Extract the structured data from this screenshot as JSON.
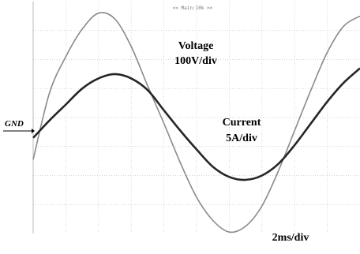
{
  "screen": {
    "top_label": "<< Main:10k >>",
    "gnd_label": "GND"
  },
  "chart_data": {
    "type": "line",
    "title": "",
    "xlabel": "",
    "ylabel": "",
    "grid": true,
    "x_divisions": 10,
    "y_divisions": 8,
    "x": [
      0,
      0.5,
      1.0,
      1.5,
      2.0,
      2.5,
      3.0,
      3.5,
      4.0,
      4.5,
      5.0,
      5.5,
      6.0,
      6.5,
      7.0,
      7.5,
      8.0,
      8.5,
      9.0,
      9.5,
      10.0
    ],
    "series": [
      {
        "name": "Voltage",
        "annotation": [
          "Voltage",
          "100V/div"
        ],
        "color": "#8a8a8a",
        "y": [
          -1.45,
          0.85,
          2.1,
          3.05,
          3.6,
          3.4,
          2.45,
          1.1,
          -0.2,
          -1.55,
          -2.75,
          -3.55,
          -3.95,
          -3.75,
          -3.05,
          -1.85,
          -0.45,
          0.95,
          2.25,
          3.15,
          3.5
        ]
      },
      {
        "name": "Current",
        "annotation": [
          "Current",
          "5A/div"
        ],
        "color": "#262626",
        "y": [
          -0.7,
          -0.1,
          0.45,
          1.0,
          1.35,
          1.5,
          1.35,
          0.95,
          0.25,
          -0.45,
          -1.1,
          -1.7,
          -2.05,
          -2.15,
          -2.0,
          -1.6,
          -0.95,
          -0.2,
          0.55,
          1.2,
          1.7
        ]
      }
    ],
    "annotations": [
      "2ms/div"
    ],
    "gnd_level": 0
  }
}
